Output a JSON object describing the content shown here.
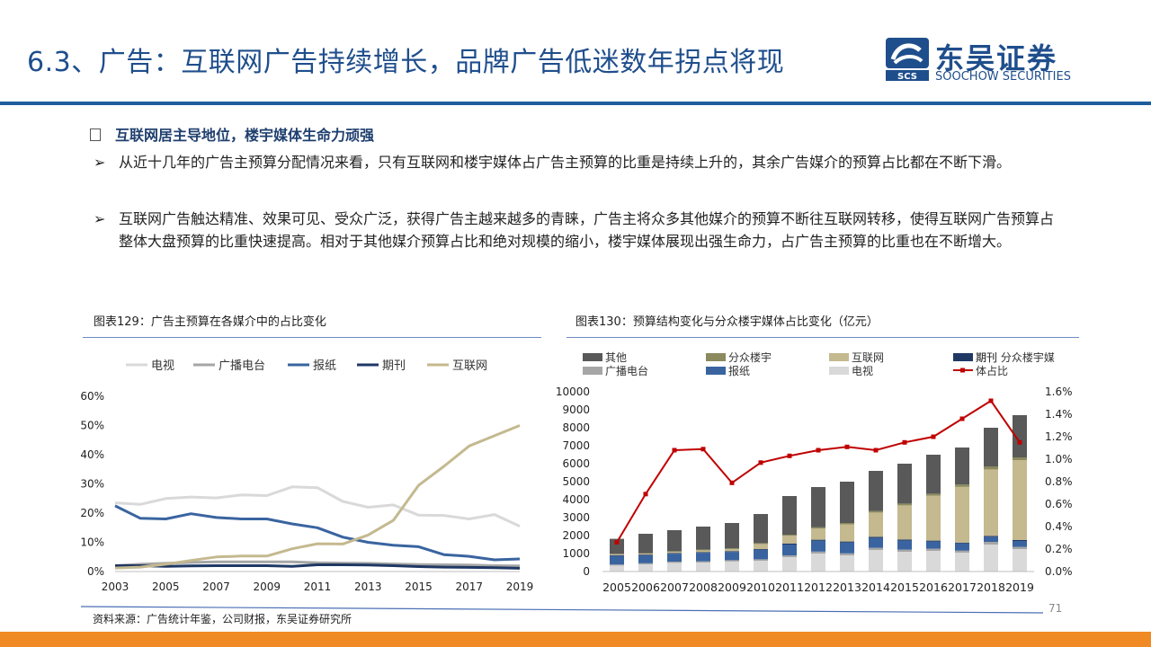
{
  "header": {
    "title": "6.3、广告：互联网广告持续增长，品牌广告低迷数年拐点将现",
    "logo_cn": "东吴证券",
    "logo_en": "SOOCHOW SECURITIES",
    "logo_mark_text": "SCS"
  },
  "body": {
    "heading": "互联网居主导地位，楼宇媒体生命力顽强",
    "arrow": "➢",
    "p1": "从近十几年的广告主预算分配情况来看，只有互联网和楼宇媒体占广告主预算的比重是持续上升的，其余广告媒介的预算占比都在不断下滑。",
    "p2": "互联网广告触达精准、效果可见、受众广泛，获得广告主越来越多的青睐，广告主将众多其他媒介的预算不断往互联网转移，使得互联网广告预算占整体大盘预算的比重快速提高。相对于其他媒介预算占比和绝对规模的缩小，楼宇媒体展现出强生命力，占广告主预算的比重也在不断增大。"
  },
  "footer": {
    "source": "资料来源：广告统计年鉴，公司财报，东吴证券研究所",
    "page": "71"
  },
  "colors": {
    "tv": "#d9d9d9",
    "radio": "#a6a6a6",
    "newspaper": "#3a64a0",
    "magazine": "#1f3864",
    "internet": "#c4b98f",
    "other": "#595959",
    "elevator": "#8b8a5e",
    "line": "#c00000",
    "accent": "#1f4e8c",
    "orange": "#f08a24"
  },
  "chart_data": [
    {
      "type": "line",
      "caption": "图表129：广告主预算在各媒介中的占比变化",
      "x": [
        2003,
        2004,
        2005,
        2006,
        2007,
        2008,
        2009,
        2010,
        2011,
        2012,
        2013,
        2014,
        2015,
        2016,
        2017,
        2018,
        2019
      ],
      "xticks": [
        "2003",
        "2005",
        "2007",
        "2009",
        "2011",
        "2013",
        "2015",
        "2017",
        "2019"
      ],
      "ylim": [
        0,
        60
      ],
      "yticks": [
        "0%",
        "10%",
        "20%",
        "30%",
        "40%",
        "50%",
        "60%"
      ],
      "legend_position": "top",
      "series": [
        {
          "name": "电视",
          "color_key": "tv",
          "values": [
            23.5,
            23,
            25,
            25.5,
            25.2,
            26.2,
            26,
            29,
            28.7,
            24,
            22,
            22.8,
            19.3,
            19.2,
            18,
            19.5,
            15.5
          ]
        },
        {
          "name": "广播电台",
          "color_key": "radio",
          "values": [
            2,
            2.5,
            2.8,
            3.1,
            3.3,
            3.3,
            3.3,
            3.3,
            3,
            2.9,
            2.8,
            2.6,
            2.4,
            2.3,
            2.2,
            2,
            1.9
          ]
        },
        {
          "name": "报纸",
          "color_key": "newspaper",
          "values": [
            22.5,
            18.2,
            18,
            19.8,
            18.5,
            18,
            18,
            16.3,
            15,
            11.8,
            10,
            9,
            8.5,
            5.8,
            5.2,
            4,
            4.3
          ]
        },
        {
          "name": "期刊",
          "color_key": "magazine",
          "values": [
            2,
            2,
            1.8,
            1.9,
            2,
            2,
            2,
            1.8,
            2.3,
            2.3,
            2.2,
            2,
            1.7,
            1.5,
            1.4,
            1.3,
            1.1
          ]
        },
        {
          "name": "互联网",
          "color_key": "internet",
          "values": [
            1.2,
            1.5,
            2.5,
            3.8,
            5,
            5.3,
            5.3,
            7.8,
            9.5,
            9.4,
            12.5,
            17.5,
            29.5,
            36,
            43,
            46.5,
            50
          ]
        }
      ]
    },
    {
      "type": "bar",
      "caption": "图表130：预算结构变化与分众楼宇媒体占比变化（亿元）",
      "categories": [
        "2005",
        "2006",
        "2007",
        "2008",
        "2009",
        "2010",
        "2011",
        "2012",
        "2013",
        "2014",
        "2015",
        "2016",
        "2017",
        "2018",
        "2019"
      ],
      "ylim": [
        0,
        10000
      ],
      "yticks": [
        "0",
        "1000",
        "2000",
        "3000",
        "4000",
        "5000",
        "6000",
        "7000",
        "8000",
        "9000",
        "10000"
      ],
      "y2lim": [
        0,
        1.6
      ],
      "y2ticks": [
        "0.0%",
        "0.2%",
        "0.4%",
        "0.6%",
        "0.8%",
        "1.0%",
        "1.2%",
        "1.4%",
        "1.6%"
      ],
      "stacked": true,
      "series": [
        {
          "name": "电视",
          "color_key": "tv",
          "values": [
            330,
            400,
            480,
            500,
            560,
            600,
            800,
            1000,
            900,
            1200,
            1100,
            1150,
            1050,
            1500,
            1250
          ]
        },
        {
          "name": "广播电台",
          "color_key": "radio",
          "values": [
            60,
            60,
            70,
            70,
            70,
            80,
            100,
            110,
            110,
            120,
            120,
            120,
            110,
            150,
            120
          ]
        },
        {
          "name": "报纸",
          "color_key": "newspaper",
          "values": [
            480,
            440,
            440,
            470,
            460,
            530,
            600,
            600,
            600,
            550,
            500,
            400,
            400,
            280,
            330
          ]
        },
        {
          "name": "期刊",
          "color_key": "magazine",
          "values": [
            40,
            40,
            40,
            40,
            40,
            40,
            60,
            60,
            60,
            60,
            60,
            50,
            50,
            50,
            50
          ]
        },
        {
          "name": "互联网",
          "color_key": "internet",
          "values": [
            50,
            60,
            70,
            100,
            120,
            280,
            430,
            620,
            950,
            1350,
            1900,
            2500,
            3100,
            3700,
            4450
          ]
        },
        {
          "name": "分众楼宇",
          "color_key": "elevator",
          "values": [
            20,
            20,
            30,
            40,
            40,
            50,
            60,
            70,
            80,
            90,
            100,
            110,
            130,
            170,
            150
          ]
        },
        {
          "name": "其他",
          "color_key": "other",
          "values": [
            840,
            1080,
            1170,
            1280,
            1410,
            1620,
            2150,
            2240,
            2300,
            2230,
            2220,
            2170,
            2060,
            2150,
            2350
          ]
        }
      ],
      "line": {
        "name_line1": "期刊 分众楼宇媒",
        "name_line2": "体占比",
        "color_key": "line",
        "values": [
          0.26,
          0.69,
          1.08,
          1.09,
          0.79,
          0.97,
          1.03,
          1.08,
          1.11,
          1.08,
          1.15,
          1.2,
          1.36,
          1.52,
          1.15
        ]
      }
    }
  ]
}
